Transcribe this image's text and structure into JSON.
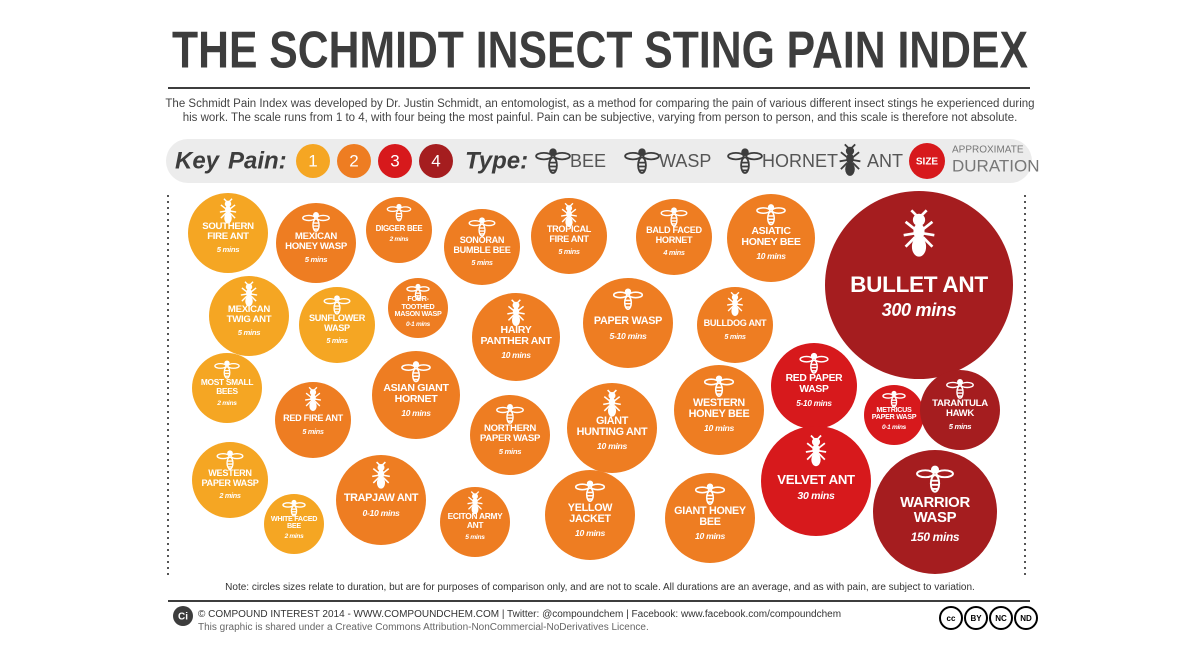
{
  "header": {
    "title": "THE SCHMIDT INSECT STING PAIN INDEX",
    "description": "The Schmidt Pain Index was developed by Dr. Justin Schmidt, an entomologist, as a method for comparing the pain of various different insect stings he experienced during his work. The scale runs from 1 to 4, with four being the most painful. Pain can be subjective, varying from person to person, and this scale is therefore not absolute."
  },
  "key": {
    "title": "Key",
    "pain_label": "Pain:",
    "pain_levels": [
      {
        "label": "1",
        "color": "#f5a623"
      },
      {
        "label": "2",
        "color": "#ee7d22"
      },
      {
        "label": "3",
        "color": "#d7191c"
      },
      {
        "label": "4",
        "color": "#a51d1f"
      }
    ],
    "type_label": "Type:",
    "types": [
      "BEE",
      "WASP",
      "HORNET",
      "ANT"
    ],
    "size_label": "SIZE",
    "size_caption": [
      "APPROXIMATE",
      "DURATION"
    ]
  },
  "nodes": [
    {
      "label": "SOUTHERN FIRE ANT",
      "duration": "5 mins",
      "pain": 1
    },
    {
      "label": "MEXICAN HONEY WASP",
      "duration": "5 mins",
      "pain": 2
    },
    {
      "label": "DIGGER BEE",
      "duration": "2 mins",
      "pain": 2
    },
    {
      "label": "SONORAN BUMBLE BEE",
      "duration": "5 mins",
      "pain": 2
    },
    {
      "label": "TROPICAL FIRE ANT",
      "duration": "5 mins",
      "pain": 2
    },
    {
      "label": "BALD FACED HORNET",
      "duration": "4 mins",
      "pain": 2
    },
    {
      "label": "ASIATIC HONEY BEE",
      "duration": "10 mins",
      "pain": 2
    },
    {
      "label": "BULLET ANT",
      "duration": "300 mins",
      "pain": 4
    },
    {
      "label": "MEXICAN TWIG ANT",
      "duration": "5 mins",
      "pain": 1
    },
    {
      "label": "SUNFLOWER WASP",
      "duration": "5 mins",
      "pain": 1
    },
    {
      "label": "FOUR-TOOTHED MASON WASP",
      "duration": "0-1 mins",
      "pain": 2
    },
    {
      "label": "HAIRY PANTHER ANT",
      "duration": "10 mins",
      "pain": 2
    },
    {
      "label": "PAPER WASP",
      "duration": "5-10 mins",
      "pain": 2
    },
    {
      "label": "BULLDOG ANT",
      "duration": "5 mins",
      "pain": 2
    },
    {
      "label": "MOST SMALL BEES",
      "duration": "2 mins",
      "pain": 1
    },
    {
      "label": "RED FIRE ANT",
      "duration": "5 mins",
      "pain": 2
    },
    {
      "label": "ASIAN GIANT HORNET",
      "duration": "10 mins",
      "pain": 2
    },
    {
      "label": "NORTHERN PAPER WASP",
      "duration": "5 mins",
      "pain": 2
    },
    {
      "label": "GIANT HUNTING ANT",
      "duration": "10 mins",
      "pain": 2
    },
    {
      "label": "WESTERN HONEY BEE",
      "duration": "10 mins",
      "pain": 2
    },
    {
      "label": "RED PAPER WASP",
      "duration": "5-10 mins",
      "pain": 3
    },
    {
      "label": "METRICUS PAPER WASP",
      "duration": "0-1 mins",
      "pain": 3
    },
    {
      "label": "TARANTULA HAWK",
      "duration": "5 mins",
      "pain": 4
    },
    {
      "label": "WESTERN PAPER WASP",
      "duration": "2 mins",
      "pain": 1
    },
    {
      "label": "WHITE FACED BEE",
      "duration": "2 mins",
      "pain": 1
    },
    {
      "label": "TRAPJAW ANT",
      "duration": "0-10 mins",
      "pain": 2
    },
    {
      "label": "ECITON ARMY ANT",
      "duration": "5 mins",
      "pain": 2
    },
    {
      "label": "YELLOW JACKET",
      "duration": "10 mins",
      "pain": 2
    },
    {
      "label": "GIANT HONEY BEE",
      "duration": "10 mins",
      "pain": 2
    },
    {
      "label": "VELVET ANT",
      "duration": "30 mins",
      "pain": 3
    },
    {
      "label": "WARRIOR WASP",
      "duration": "150 mins",
      "pain": 4
    }
  ],
  "note": "Note: circles sizes relate to duration, but are for purposes of comparison only, and are not to scale. All durations are an average, and as with pain, are subject to variation.",
  "footer": {
    "logo": "Ci",
    "credits": "© COMPOUND INTEREST 2014 - WWW.COMPOUNDCHEM.COM | Twitter: @compoundchem | Facebook: www.facebook.com/compoundchem",
    "license": "This graphic is shared under a Creative Commons Attribution-NonCommercial-NoDerivatives Licence.",
    "badges": [
      "cc",
      "BY",
      "NC",
      "ND"
    ]
  }
}
